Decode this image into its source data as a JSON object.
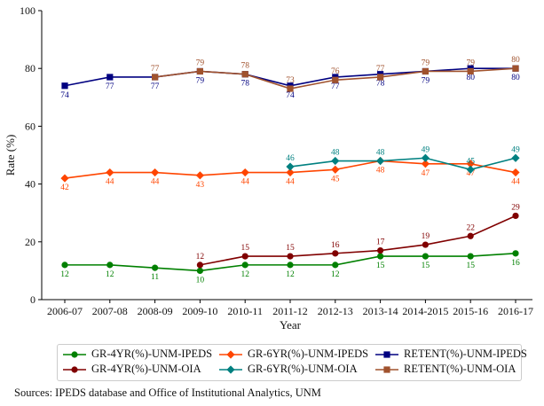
{
  "chart_data": {
    "type": "line",
    "xlabel": "Year",
    "ylabel": "Rate (%)",
    "ylim": [
      0,
      100
    ],
    "yticks": [
      0,
      20,
      40,
      60,
      80,
      100
    ],
    "grid": false,
    "legend_placement": "bottom",
    "categories": [
      "2006-07",
      "2007-08",
      "2008-09",
      "2009-10",
      "2010-11",
      "2011-12",
      "2012-13",
      "2013-14",
      "2014-2015",
      "2015-16",
      "2016-17"
    ],
    "series": [
      {
        "name": "GR-4YR(%)-UNM-IPEDS",
        "color": "#008000",
        "marker": "circle",
        "label_pos": "below",
        "values": [
          12,
          12,
          11,
          10,
          12,
          12,
          12,
          15,
          15,
          15,
          16
        ]
      },
      {
        "name": "GR-4YR(%)-UNM-OIA",
        "color": "#800000",
        "marker": "circle",
        "label_pos": "above",
        "values": [
          null,
          null,
          null,
          12,
          15,
          15,
          16,
          17,
          19,
          22,
          29
        ]
      },
      {
        "name": "GR-6YR(%)-UNM-IPEDS",
        "color": "#ff4500",
        "marker": "diamond",
        "label_pos": "below",
        "values": [
          42,
          44,
          44,
          43,
          44,
          44,
          45,
          48,
          47,
          47,
          44
        ]
      },
      {
        "name": "GR-6YR(%)-UNM-OIA",
        "color": "#008080",
        "marker": "diamond",
        "label_pos": "above",
        "values": [
          null,
          null,
          null,
          null,
          null,
          46,
          48,
          48,
          49,
          45,
          49
        ]
      },
      {
        "name": "RETENT(%)-UNM-IPEDS",
        "color": "#000080",
        "marker": "square",
        "label_pos": "below",
        "values": [
          74,
          77,
          77,
          79,
          78,
          74,
          77,
          78,
          79,
          80,
          80
        ]
      },
      {
        "name": "RETENT(%)-UNM-OIA",
        "color": "#a0522d",
        "marker": "square",
        "label_pos": "above",
        "values": [
          null,
          null,
          77,
          79,
          78,
          73,
          76,
          77,
          79,
          79,
          80
        ]
      }
    ]
  },
  "source_note": "Sources: IPEDS database and Office of Institutional Analytics, UNM"
}
